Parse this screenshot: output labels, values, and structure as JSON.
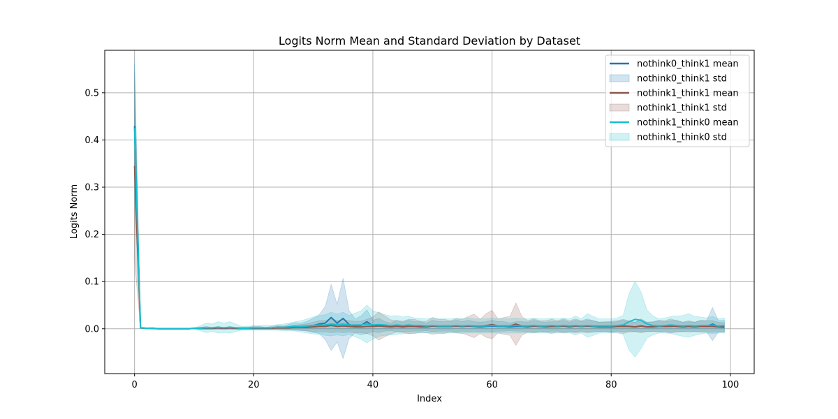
{
  "chart_data": {
    "type": "line",
    "title": "Logits Norm Mean and Standard Deviation by Dataset",
    "xlabel": "Index",
    "ylabel": "Logits Norm",
    "xlim": [
      -5,
      104
    ],
    "ylim": [
      -0.095,
      0.59
    ],
    "xticks": [
      0,
      20,
      40,
      60,
      80,
      100
    ],
    "yticks": [
      0.0,
      0.1,
      0.2,
      0.3,
      0.4,
      0.5
    ],
    "grid": true,
    "legend_position": "top-right",
    "x_start": 0,
    "series": [
      {
        "name": "nothink0_think1",
        "mean_label": "nothink0_think1 mean",
        "std_label": "nothink0_think1 std",
        "color": "#1f77b4",
        "mean": [
          0.43,
          0.002,
          0.001,
          0.001,
          0,
          0,
          0,
          0,
          0,
          0,
          0.001,
          0.001,
          0.002,
          0.001,
          0.002,
          0.001,
          0.002,
          0.001,
          0.001,
          0.001,
          0.002,
          0.002,
          0.001,
          0.002,
          0.003,
          0.002,
          0.004,
          0.005,
          0.004,
          0.006,
          0.007,
          0.01,
          0.012,
          0.024,
          0.012,
          0.022,
          0.009,
          0.006,
          0.007,
          0.015,
          0.006,
          0.007,
          0.005,
          0.004,
          0.006,
          0.004,
          0.006,
          0.005,
          0.005,
          0.004,
          0.006,
          0.005,
          0.005,
          0.005,
          0.006,
          0.005,
          0.006,
          0.005,
          0.004,
          0.005,
          0.006,
          0.005,
          0.005,
          0.004,
          0.005,
          0.005,
          0.004,
          0.006,
          0.005,
          0.004,
          0.005,
          0.005,
          0.006,
          0.004,
          0.006,
          0.005,
          0.006,
          0.005,
          0.004,
          0.005,
          0.004,
          0.005,
          0.006,
          0.005,
          0.004,
          0.006,
          0.004,
          0.005,
          0.006,
          0.005,
          0.005,
          0.006,
          0.004,
          0.005,
          0.004,
          0.006,
          0.005,
          0.01,
          0.005,
          0.006
        ],
        "std": [
          0.13,
          0.001,
          0.001,
          0.001,
          0.001,
          0.001,
          0.001,
          0.001,
          0.001,
          0.001,
          0.001,
          0.002,
          0.003,
          0.002,
          0.003,
          0.002,
          0.003,
          0.002,
          0.002,
          0.002,
          0.003,
          0.003,
          0.002,
          0.003,
          0.004,
          0.004,
          0.006,
          0.008,
          0.008,
          0.01,
          0.015,
          0.02,
          0.035,
          0.07,
          0.04,
          0.085,
          0.03,
          0.015,
          0.02,
          0.025,
          0.012,
          0.015,
          0.01,
          0.008,
          0.012,
          0.01,
          0.012,
          0.01,
          0.01,
          0.008,
          0.012,
          0.01,
          0.01,
          0.01,
          0.012,
          0.01,
          0.012,
          0.01,
          0.01,
          0.01,
          0.012,
          0.01,
          0.01,
          0.008,
          0.01,
          0.01,
          0.01,
          0.012,
          0.01,
          0.01,
          0.01,
          0.01,
          0.012,
          0.01,
          0.012,
          0.01,
          0.012,
          0.012,
          0.01,
          0.01,
          0.01,
          0.01,
          0.012,
          0.01,
          0.01,
          0.012,
          0.01,
          0.01,
          0.012,
          0.01,
          0.012,
          0.012,
          0.01,
          0.01,
          0.01,
          0.012,
          0.012,
          0.035,
          0.012,
          0.012
        ]
      },
      {
        "name": "nothink1_think1",
        "mean_label": "nothink1_think1 mean",
        "std_label": "nothink1_think1 std",
        "color": "#8c564b",
        "mean": [
          0.345,
          0.002,
          0.001,
          0.001,
          0,
          0,
          0,
          0,
          0,
          0,
          0.001,
          0.001,
          0.001,
          0.001,
          0.002,
          0.001,
          0.002,
          0.001,
          0.001,
          0.001,
          0.001,
          0.001,
          0.001,
          0.001,
          0.002,
          0.002,
          0.002,
          0.003,
          0.003,
          0.003,
          0.004,
          0.005,
          0.005,
          0.007,
          0.005,
          0.006,
          0.005,
          0.004,
          0.004,
          0.005,
          0.005,
          0.006,
          0.005,
          0.004,
          0.005,
          0.004,
          0.005,
          0.005,
          0.004,
          0.004,
          0.006,
          0.005,
          0.005,
          0.005,
          0.006,
          0.005,
          0.006,
          0.006,
          0.005,
          0.007,
          0.009,
          0.006,
          0.006,
          0.006,
          0.01,
          0.006,
          0.005,
          0.006,
          0.005,
          0.005,
          0.005,
          0.005,
          0.006,
          0.005,
          0.006,
          0.005,
          0.006,
          0.005,
          0.004,
          0.004,
          0.004,
          0.005,
          0.005,
          0.005,
          0.004,
          0.006,
          0.004,
          0.004,
          0.005,
          0.005,
          0.006,
          0.005,
          0.004,
          0.005,
          0.004,
          0.005,
          0.005,
          0.005,
          0.004,
          0.003
        ],
        "std": [
          0.2,
          0.001,
          0.001,
          0.001,
          0.001,
          0.001,
          0.001,
          0.001,
          0.001,
          0.001,
          0.001,
          0.002,
          0.002,
          0.002,
          0.002,
          0.002,
          0.002,
          0.002,
          0.002,
          0.002,
          0.002,
          0.002,
          0.002,
          0.002,
          0.003,
          0.003,
          0.004,
          0.005,
          0.006,
          0.008,
          0.01,
          0.012,
          0.012,
          0.015,
          0.012,
          0.014,
          0.012,
          0.012,
          0.012,
          0.015,
          0.02,
          0.03,
          0.022,
          0.015,
          0.012,
          0.012,
          0.015,
          0.015,
          0.012,
          0.012,
          0.018,
          0.015,
          0.015,
          0.012,
          0.015,
          0.015,
          0.02,
          0.025,
          0.015,
          0.025,
          0.03,
          0.015,
          0.018,
          0.02,
          0.045,
          0.02,
          0.012,
          0.015,
          0.012,
          0.012,
          0.015,
          0.012,
          0.015,
          0.012,
          0.015,
          0.012,
          0.015,
          0.012,
          0.01,
          0.01,
          0.012,
          0.012,
          0.015,
          0.012,
          0.01,
          0.015,
          0.01,
          0.01,
          0.012,
          0.012,
          0.015,
          0.012,
          0.01,
          0.012,
          0.01,
          0.012,
          0.012,
          0.012,
          0.01,
          0.01
        ]
      },
      {
        "name": "nothink1_think0",
        "mean_label": "nothink1_think0 mean",
        "std_label": "nothink1_think0 std",
        "color": "#17becf",
        "mean": [
          0.425,
          0.002,
          0.001,
          0.001,
          0,
          0,
          0,
          0,
          0,
          0,
          0.001,
          0.001,
          0.002,
          0.002,
          0.003,
          0.002,
          0.003,
          0.002,
          0.001,
          0.001,
          0.002,
          0.002,
          0.002,
          0.002,
          0.003,
          0.003,
          0.004,
          0.005,
          0.005,
          0.006,
          0.007,
          0.008,
          0.008,
          0.01,
          0.009,
          0.01,
          0.008,
          0.008,
          0.008,
          0.01,
          0.008,
          0.009,
          0.008,
          0.007,
          0.008,
          0.007,
          0.008,
          0.007,
          0.007,
          0.006,
          0.007,
          0.006,
          0.006,
          0.006,
          0.007,
          0.006,
          0.007,
          0.006,
          0.006,
          0.006,
          0.007,
          0.006,
          0.006,
          0.006,
          0.007,
          0.006,
          0.006,
          0.007,
          0.006,
          0.006,
          0.007,
          0.006,
          0.007,
          0.006,
          0.007,
          0.006,
          0.007,
          0.006,
          0.006,
          0.006,
          0.006,
          0.007,
          0.008,
          0.015,
          0.02,
          0.018,
          0.01,
          0.007,
          0.006,
          0.007,
          0.008,
          0.007,
          0.006,
          0.007,
          0.006,
          0.007,
          0.007,
          0.008,
          0.006,
          0.007
        ],
        "std": [
          0.15,
          0.001,
          0.001,
          0.002,
          0.001,
          0.001,
          0.001,
          0.001,
          0.001,
          0.001,
          0.001,
          0.005,
          0.01,
          0.008,
          0.012,
          0.01,
          0.012,
          0.008,
          0.004,
          0.004,
          0.005,
          0.005,
          0.005,
          0.005,
          0.006,
          0.007,
          0.008,
          0.01,
          0.012,
          0.015,
          0.018,
          0.02,
          0.022,
          0.025,
          0.022,
          0.025,
          0.02,
          0.025,
          0.03,
          0.04,
          0.03,
          0.025,
          0.022,
          0.02,
          0.02,
          0.018,
          0.018,
          0.016,
          0.015,
          0.015,
          0.016,
          0.015,
          0.015,
          0.015,
          0.016,
          0.015,
          0.016,
          0.015,
          0.015,
          0.015,
          0.016,
          0.015,
          0.015,
          0.015,
          0.016,
          0.015,
          0.015,
          0.016,
          0.015,
          0.015,
          0.016,
          0.015,
          0.016,
          0.015,
          0.02,
          0.015,
          0.025,
          0.02,
          0.015,
          0.015,
          0.015,
          0.016,
          0.02,
          0.06,
          0.08,
          0.06,
          0.03,
          0.02,
          0.015,
          0.016,
          0.018,
          0.02,
          0.022,
          0.025,
          0.02,
          0.018,
          0.016,
          0.018,
          0.015,
          0.016
        ]
      }
    ]
  }
}
